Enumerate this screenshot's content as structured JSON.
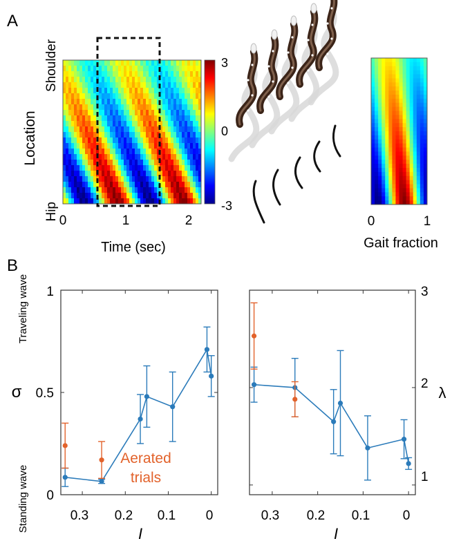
{
  "panel_labels": {
    "a": "A",
    "b": "B"
  },
  "colors": {
    "blue": "#2b7bba",
    "orange": "#e2622b",
    "dashed_box": "#111111"
  },
  "icons": {
    "snake_series": "snake-icon",
    "body_wave": "wave-icon"
  },
  "chart_data": [
    {
      "type": "heatmap",
      "panel": "A",
      "xlabel": "Time (sec)",
      "ylabel": "Location",
      "y_top_label": "Shoulder",
      "y_bottom_label": "Hip",
      "xlim": [
        0,
        2.2
      ],
      "xticks": [
        "0",
        "1",
        "2"
      ],
      "colorbar": {
        "min": -3,
        "max": 3,
        "ticks": [
          "3",
          "0",
          "-3"
        ],
        "colormap": "jet"
      },
      "highlight_window": {
        "x_start": 0.55,
        "x_end": 1.5
      }
    },
    {
      "type": "heatmap",
      "panel": "A-right",
      "xlabel": "Gait fraction",
      "xlim": [
        0,
        1
      ],
      "xticks": [
        "0",
        "1"
      ]
    },
    {
      "type": "line",
      "panel": "B-left",
      "ylabel": "σ",
      "ylim": [
        0,
        1
      ],
      "yticks": [
        "0",
        "0.5",
        "1"
      ],
      "xlim": [
        0.35,
        -0.015
      ],
      "xticks": [
        "0.3",
        "0.2",
        "0.1",
        "0"
      ],
      "xlabel": "I",
      "y_top_annotation": "Traveling wave",
      "y_bottom_annotation": "Standing wave",
      "annotation": "Aerated trials",
      "series": [
        {
          "marker": "blue",
          "line": true,
          "x": [
            0.34,
            0.255,
            0.165,
            0.15,
            0.09,
            0.01,
            0.0
          ],
          "y": [
            0.085,
            0.065,
            0.37,
            0.48,
            0.43,
            0.71,
            0.58
          ],
          "err": [
            0.045,
            0.01,
            0.12,
            0.15,
            0.17,
            0.11,
            0.1
          ]
        },
        {
          "marker": "orange",
          "line": false,
          "x": [
            0.34,
            0.255
          ],
          "y": [
            0.24,
            0.17
          ],
          "err": [
            0.11,
            0.09
          ]
        }
      ]
    },
    {
      "type": "line",
      "panel": "B-right",
      "ylabel": "λ",
      "ylim": [
        0.9,
        3
      ],
      "yticks": [
        "1",
        "2",
        "3"
      ],
      "xlim": [
        0.35,
        -0.015
      ],
      "xticks": [
        "0.3",
        "0.2",
        "0.1",
        "0"
      ],
      "xlabel": "I",
      "series": [
        {
          "marker": "blue",
          "line": true,
          "x": [
            0.34,
            0.25,
            0.165,
            0.15,
            0.09,
            0.01,
            0.0
          ],
          "y": [
            2.03,
            2.0,
            1.65,
            1.84,
            1.38,
            1.47,
            1.22
          ],
          "err": [
            0.18,
            0.3,
            0.33,
            0.54,
            0.33,
            0.2,
            0.06
          ]
        },
        {
          "marker": "orange",
          "line": false,
          "x": [
            0.34,
            0.25
          ],
          "y": [
            2.53,
            1.88
          ],
          "err": [
            0.34,
            0.18
          ]
        }
      ]
    }
  ]
}
